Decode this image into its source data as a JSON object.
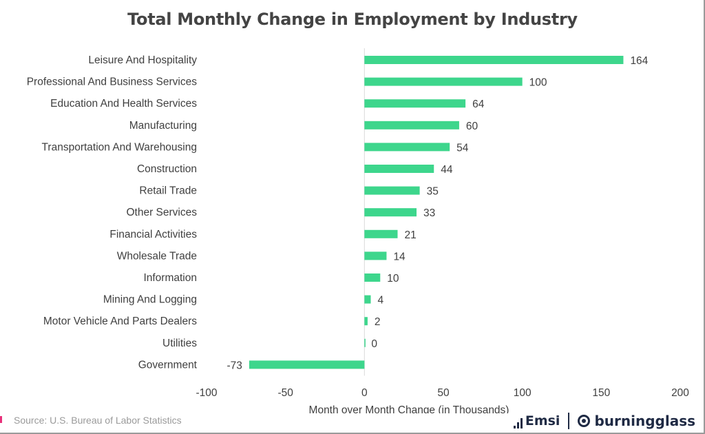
{
  "chart_data": {
    "type": "bar",
    "orientation": "horizontal",
    "title": "Total Monthly Change in Employment by Industry",
    "xlabel": "Month over Month Change (in Thousands)",
    "ylabel": "",
    "categories": [
      "Leisure And Hospitality",
      "Professional And Business Services",
      "Education And Health Services",
      "Manufacturing",
      "Transportation And Warehousing",
      "Construction",
      "Retail Trade",
      "Other Services",
      "Financial Activities",
      "Wholesale Trade",
      "Information",
      "Mining And Logging",
      "Motor Vehicle And Parts Dealers",
      "Utilities",
      "Government"
    ],
    "values": [
      164,
      100,
      64,
      60,
      54,
      44,
      35,
      33,
      21,
      14,
      10,
      4,
      2,
      0,
      -73
    ],
    "xlim": [
      -100,
      200
    ],
    "xticks": [
      -100,
      -50,
      0,
      50,
      100,
      150,
      200
    ],
    "bar_color": "#3dd68c",
    "grid": false,
    "legend": "none"
  },
  "footer": {
    "source": "Source:  U.S. Bureau of Labor Statistics",
    "logo_emsi": "Emsi",
    "logo_bg": "burningglass"
  },
  "colors": {
    "text": "#3f3f3f",
    "accent": "#e8317a",
    "logo": "#1f2a44"
  }
}
